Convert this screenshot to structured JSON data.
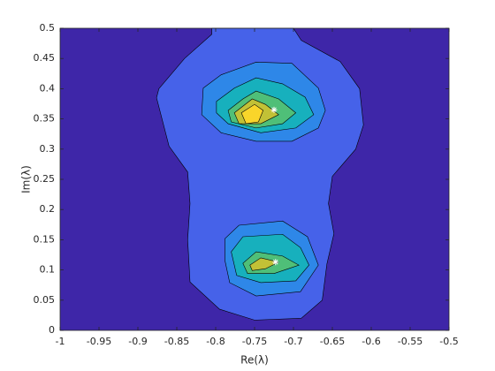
{
  "chart_data": {
    "type": "contour",
    "xlabel": "Re(λ)",
    "ylabel": "Im(λ)",
    "xlim": [
      -1,
      -0.5
    ],
    "ylim": [
      0,
      0.5
    ],
    "xticks": [
      -1,
      -0.95,
      -0.9,
      -0.85,
      -0.8,
      -0.75,
      -0.7,
      -0.65,
      -0.6,
      -0.55,
      -0.5
    ],
    "yticks": [
      0,
      0.05,
      0.1,
      0.15,
      0.2,
      0.25,
      0.3,
      0.35,
      0.4,
      0.45,
      0.5
    ],
    "background": "#3e26a8",
    "regions": [
      {
        "color": "#4662e9",
        "x": [
          -0.873,
          -0.84,
          -0.805,
          -0.805,
          -0.7,
          -0.69,
          -0.64,
          -0.615,
          -0.61,
          -0.62,
          -0.65,
          -0.655,
          -0.648,
          -0.657,
          -0.663,
          -0.69,
          -0.75,
          -0.795,
          -0.833,
          -0.836,
          -0.833,
          -0.836,
          -0.86,
          -0.876
        ],
        "y": [
          0.4,
          0.45,
          0.49,
          0.5,
          0.5,
          0.48,
          0.445,
          0.4,
          0.34,
          0.3,
          0.255,
          0.21,
          0.16,
          0.11,
          0.05,
          0.02,
          0.017,
          0.035,
          0.08,
          0.15,
          0.21,
          0.262,
          0.305,
          0.385
        ]
      },
      {
        "color": "#2e87e8",
        "x": [
          -0.816,
          -0.793,
          -0.748,
          -0.702,
          -0.668,
          -0.659,
          -0.668,
          -0.702,
          -0.748,
          -0.793,
          -0.818
        ],
        "y": [
          0.401,
          0.423,
          0.444,
          0.442,
          0.401,
          0.364,
          0.335,
          0.313,
          0.313,
          0.327,
          0.357
        ]
      },
      {
        "color": "#2e87e8",
        "x": [
          -0.788,
          -0.77,
          -0.714,
          -0.682,
          -0.668,
          -0.691,
          -0.748,
          -0.782,
          -0.788
        ],
        "y": [
          0.152,
          0.174,
          0.181,
          0.155,
          0.108,
          0.064,
          0.057,
          0.079,
          0.115
        ]
      },
      {
        "color": "#17b0bd",
        "x": [
          -0.799,
          -0.776,
          -0.748,
          -0.714,
          -0.685,
          -0.674,
          -0.697,
          -0.742,
          -0.784,
          -0.799
        ],
        "y": [
          0.379,
          0.401,
          0.418,
          0.408,
          0.386,
          0.357,
          0.335,
          0.327,
          0.342,
          0.36
        ]
      },
      {
        "color": "#17b0bd",
        "x": [
          -0.78,
          -0.765,
          -0.714,
          -0.691,
          -0.68,
          -0.697,
          -0.742,
          -0.773
        ],
        "y": [
          0.13,
          0.155,
          0.159,
          0.137,
          0.108,
          0.082,
          0.079,
          0.091
        ]
      },
      {
        "color": "#4fbf78",
        "x": [
          -0.784,
          -0.765,
          -0.748,
          -0.719,
          -0.697,
          -0.714,
          -0.748,
          -0.78
        ],
        "y": [
          0.364,
          0.383,
          0.396,
          0.383,
          0.36,
          0.342,
          0.335,
          0.345
        ]
      },
      {
        "color": "#4fbf78",
        "x": [
          -0.765,
          -0.748,
          -0.714,
          -0.693,
          -0.725,
          -0.759
        ],
        "y": [
          0.111,
          0.13,
          0.123,
          0.108,
          0.094,
          0.094
        ]
      },
      {
        "color": "#c2c136",
        "x": [
          -0.776,
          -0.753,
          -0.736,
          -0.719,
          -0.742,
          -0.77
        ],
        "y": [
          0.36,
          0.383,
          0.374,
          0.357,
          0.342,
          0.342
        ]
      },
      {
        "color": "#c2c136",
        "x": [
          -0.756,
          -0.742,
          -0.719,
          -0.736,
          -0.753
        ],
        "y": [
          0.108,
          0.12,
          0.113,
          0.102,
          0.099
        ]
      },
      {
        "color": "#f9d52a",
        "x": [
          -0.767,
          -0.75,
          -0.739,
          -0.745,
          -0.761
        ],
        "y": [
          0.36,
          0.374,
          0.364,
          0.345,
          0.342
        ]
      }
    ],
    "markers": {
      "color": "#ffffff",
      "x": [
        -0.725,
        -0.723
      ],
      "y": [
        0.365,
        0.113
      ]
    }
  }
}
